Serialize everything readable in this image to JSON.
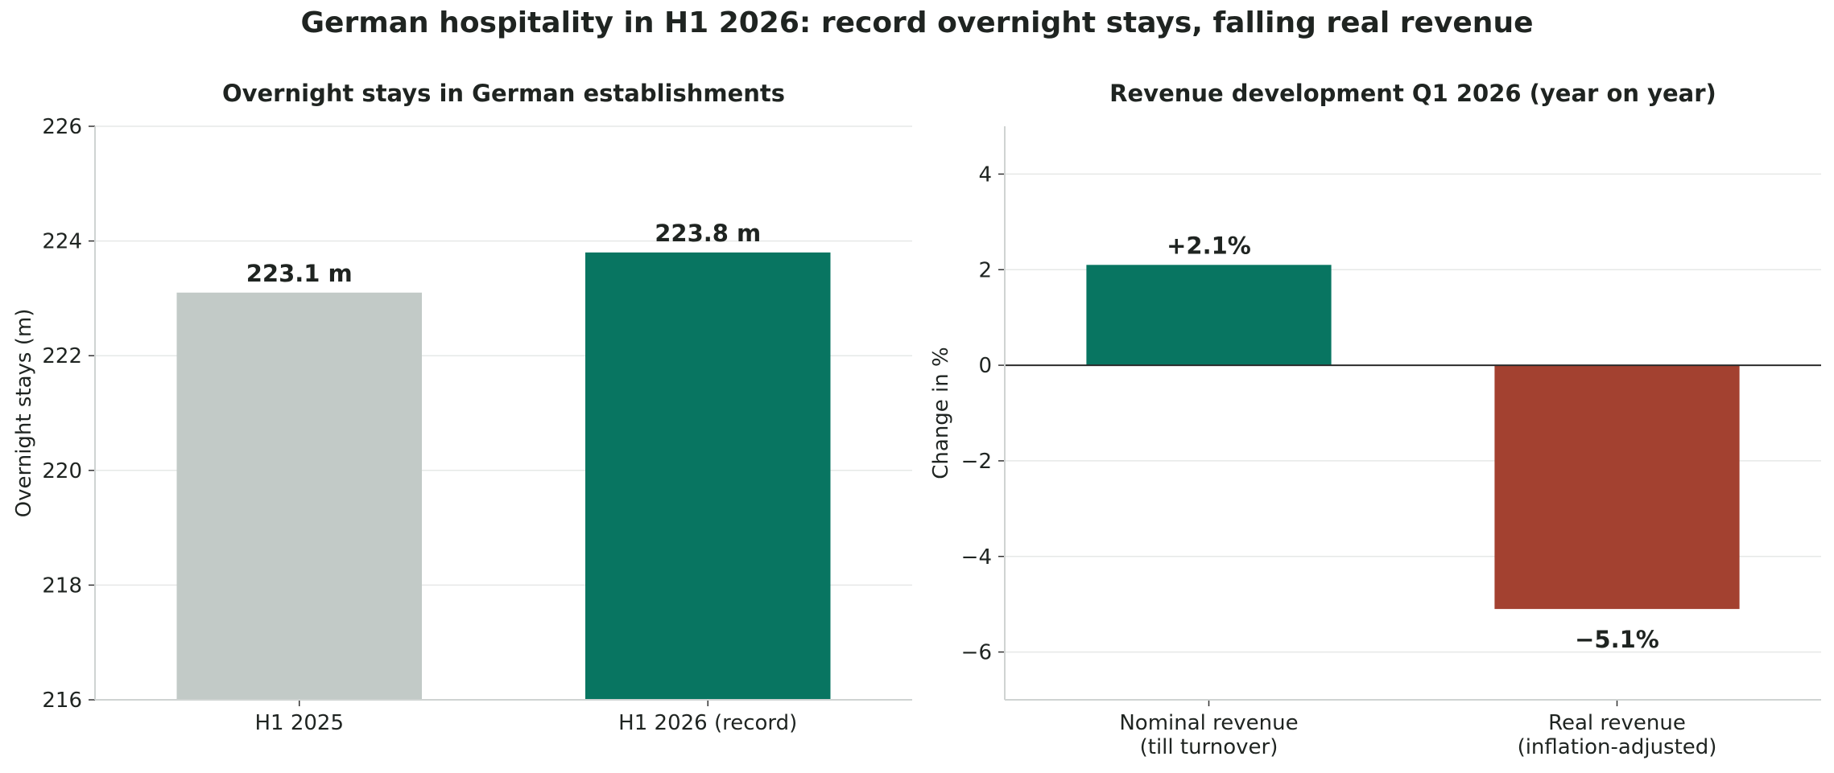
{
  "title": "German hospitality in H1 2026: record overnight stays, falling real revenue",
  "chart_data": [
    {
      "type": "bar",
      "title": "Overnight stays in German establishments",
      "xlabel": "",
      "ylabel": "Overnight stays (m)",
      "categories": [
        "H1 2025",
        "H1 2026 (record)"
      ],
      "values": [
        223.1,
        223.8
      ],
      "data_labels": [
        "223.1 m",
        "223.8 m"
      ],
      "colors": [
        "#c2cac7",
        "#087561"
      ],
      "ylim": [
        216,
        226
      ],
      "yticks": [
        216,
        218,
        220,
        222,
        224,
        226
      ],
      "ytick_labels": [
        "216",
        "218",
        "220",
        "222",
        "224",
        "226"
      ],
      "grid": "y",
      "legend": "none"
    },
    {
      "type": "bar",
      "title": "Revenue development Q1 2026 (year on year)",
      "xlabel": "",
      "ylabel": "Change in %",
      "categories": [
        "Nominal revenue\n(till turnover)",
        "Real revenue\n(inflation-adjusted)"
      ],
      "values": [
        2.1,
        -5.1
      ],
      "data_labels": [
        "+2.1%",
        "−5.1%"
      ],
      "colors": [
        "#087561",
        "#a34130"
      ],
      "ylim": [
        -7,
        5
      ],
      "yticks": [
        -6,
        -4,
        -2,
        0,
        2,
        4
      ],
      "ytick_labels": [
        "−6",
        "−4",
        "−2",
        "0",
        "2",
        "4"
      ],
      "grid": "y",
      "legend": "none"
    }
  ]
}
